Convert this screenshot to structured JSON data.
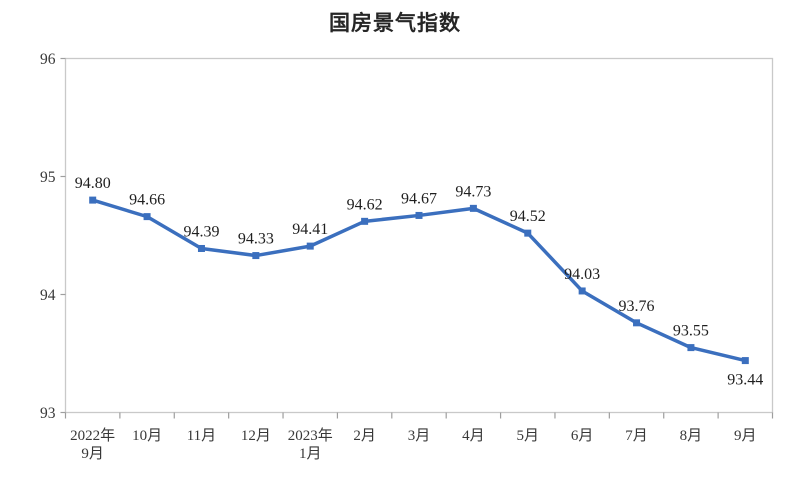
{
  "page": {
    "background_color": "#ffffff"
  },
  "chart_data": {
    "type": "line",
    "title": "国房景气指数",
    "categories": [
      "2022年\n9月",
      "10月",
      "11月",
      "12月",
      "2023年\n1月",
      "2月",
      "3月",
      "4月",
      "5月",
      "6月",
      "7月",
      "8月",
      "9月"
    ],
    "values": [
      94.8,
      94.66,
      94.39,
      94.33,
      94.41,
      94.62,
      94.67,
      94.73,
      94.52,
      94.03,
      93.76,
      93.55,
      93.44
    ],
    "value_labels": [
      "94.80",
      "94.66",
      "94.39",
      "94.33",
      "94.41",
      "94.62",
      "94.67",
      "94.73",
      "94.52",
      "94.03",
      "93.76",
      "93.55",
      "93.44"
    ],
    "xlabel": "",
    "ylabel": "",
    "ylim": [
      93,
      96
    ],
    "yticks": [
      93,
      94,
      95,
      96
    ],
    "grid": false,
    "legend": "none",
    "marker": "square",
    "label_below_indices": [
      12
    ],
    "line_color": "#3B6FBE",
    "axis_color": "#C9C9C9",
    "tick_color": "#9E9E9E",
    "axis_text_color": "#383838",
    "label_text_color": "#1f1f1f",
    "title_color": "#262626"
  }
}
